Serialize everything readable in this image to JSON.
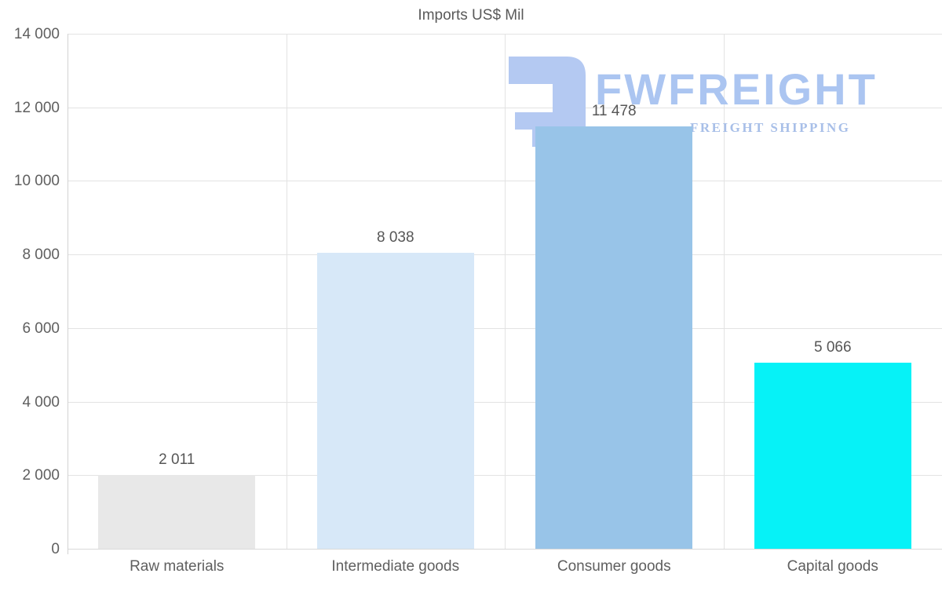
{
  "title": "Imports US$ Mil",
  "watermark": {
    "brand": "FWFREIGHT",
    "tagline": "FREIGHT SHIPPING",
    "logo_color": "#b4c9f2",
    "brand_color": "#abc5f1",
    "tagline_color": "#a8bfe8"
  },
  "colors": {
    "grid": "#e3e3e3",
    "axis": "#d2d2d2",
    "text": "#595959",
    "background": "#ffffff"
  },
  "chart_data": {
    "type": "bar",
    "title": "Imports US$ Mil",
    "categories": [
      "Raw materials",
      "Intermediate goods",
      "Consumer goods",
      "Capital goods"
    ],
    "values": [
      2011,
      8038,
      11478,
      5066
    ],
    "value_labels": [
      "2 011",
      "8 038",
      "11 478",
      "5 066"
    ],
    "bar_colors": [
      "#e8e8e8",
      "#d7e8f8",
      "#98c4e8",
      "#06f2f7"
    ],
    "xlabel": "",
    "ylabel": "",
    "ylim": [
      0,
      14000
    ],
    "ytick_step": 2000,
    "ytick_labels": [
      "0",
      "2 000",
      "4 000",
      "6 000",
      "8 000",
      "10 000",
      "12 000",
      "14 000"
    ],
    "grid": true,
    "legend_position": "none"
  }
}
